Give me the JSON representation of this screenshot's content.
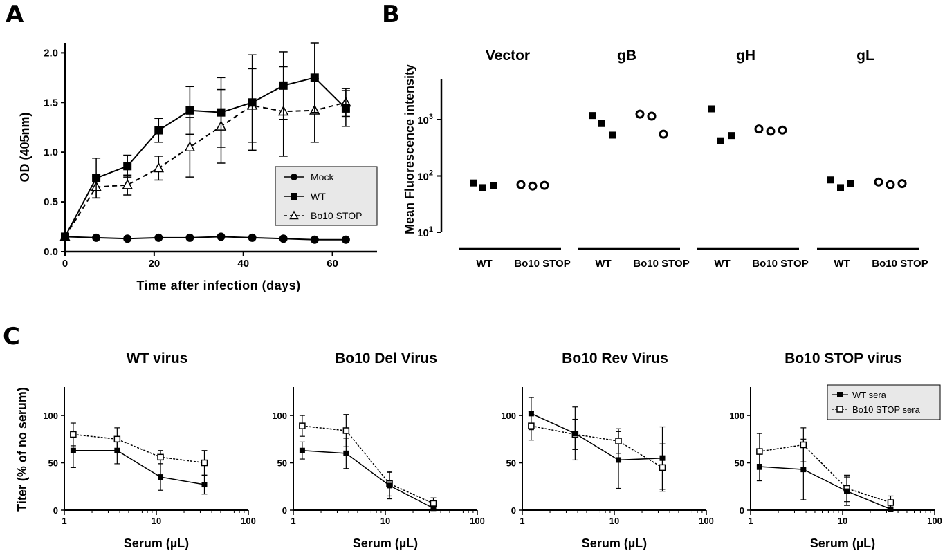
{
  "panels": {
    "A": "A",
    "B": "B",
    "C": "C"
  },
  "chart_data": [
    {
      "panel": "A",
      "type": "line",
      "xlabel": "Time after infection (days)",
      "ylabel": "OD (405nm)",
      "xlim": [
        0,
        70
      ],
      "ylim": [
        0,
        2.1
      ],
      "xticks": [
        0,
        20,
        40,
        60
      ],
      "yticks": [
        0.0,
        0.5,
        1.0,
        1.5,
        2.0
      ],
      "ytick_labels": [
        "0.0",
        "0.5",
        "1.0",
        "1.5",
        "2.0"
      ],
      "legend_position": "bottom-right",
      "series": [
        {
          "name": "Mock",
          "marker": "circle-filled",
          "dash": false,
          "x": [
            0,
            7,
            14,
            21,
            28,
            35,
            42,
            49,
            56,
            63
          ],
          "y": [
            0.15,
            0.14,
            0.13,
            0.14,
            0.14,
            0.15,
            0.14,
            0.13,
            0.12,
            0.12
          ],
          "err": [
            0,
            0,
            0,
            0,
            0,
            0,
            0,
            0,
            0,
            0
          ]
        },
        {
          "name": "WT",
          "marker": "square-filled",
          "dash": false,
          "x": [
            0,
            7,
            14,
            21,
            28,
            35,
            42,
            49,
            56,
            63
          ],
          "y": [
            0.15,
            0.74,
            0.86,
            1.22,
            1.42,
            1.4,
            1.5,
            1.67,
            1.75,
            1.44
          ],
          "err": [
            0,
            0.2,
            0.11,
            0.12,
            0.24,
            0.35,
            0.48,
            0.34,
            0.35,
            0.18
          ]
        },
        {
          "name": "Bo10 STOP",
          "marker": "triangle-open",
          "dash": true,
          "x": [
            0,
            7,
            14,
            21,
            28,
            35,
            42,
            49,
            56,
            63
          ],
          "y": [
            0.15,
            0.65,
            0.67,
            0.84,
            1.05,
            1.26,
            1.47,
            1.41,
            1.42,
            1.5
          ],
          "err": [
            0,
            0.11,
            0.1,
            0.12,
            0.3,
            0.37,
            0.37,
            0.45,
            0.32,
            0.14
          ]
        }
      ]
    },
    {
      "panel": "B",
      "type": "scatter",
      "ylabel": "Mean Fluorescence intensity",
      "yscale": "log",
      "ylim": [
        10,
        5000
      ],
      "yticks": [
        10,
        100,
        1000
      ],
      "ytick_base": "10",
      "ytick_exponents": [
        "1",
        "2",
        "3"
      ],
      "groups": [
        {
          "title": "Vector",
          "WT": [
            75,
            62,
            68
          ],
          "Bo10 STOP": [
            70,
            66,
            68
          ]
        },
        {
          "title": "gB",
          "WT": [
            1180,
            850,
            530
          ],
          "Bo10 STOP": [
            1250,
            1150,
            550
          ]
        },
        {
          "title": "gH",
          "WT": [
            1550,
            420,
            520
          ],
          "Bo10 STOP": [
            680,
            620,
            650
          ]
        },
        {
          "title": "gL",
          "WT": [
            85,
            62,
            73
          ],
          "Bo10 STOP": [
            78,
            70,
            73
          ]
        }
      ],
      "categories": [
        "WT",
        "Bo10 STOP"
      ],
      "markers": {
        "WT": "square-filled",
        "Bo10 STOP": "circle-open"
      }
    },
    {
      "panel": "C",
      "type": "line",
      "xlabel": "Serum (µL)",
      "ylabel": "Titer (% of no serum)",
      "xscale": "log",
      "xlim": [
        1,
        100
      ],
      "ylim": [
        0,
        130
      ],
      "xticks": [
        1,
        10,
        100
      ],
      "yticks": [
        0,
        50,
        100
      ],
      "legend_position": "top-right",
      "legend_series": [
        "WT sera",
        "Bo10 STOP sera"
      ],
      "subplots": [
        {
          "title": "WT virus",
          "series": [
            {
              "name": "WT sera",
              "marker": "square-filled",
              "x": [
                1.25,
                3.75,
                11.1,
                33.3
              ],
              "y": [
                63,
                63,
                35,
                27
              ],
              "err": [
                18,
                14,
                14,
                10
              ]
            },
            {
              "name": "Bo10 STOP sera",
              "marker": "square-open",
              "x": [
                1.25,
                3.75,
                11.1,
                33.3
              ],
              "y": [
                80,
                75,
                56,
                50
              ],
              "err": [
                12,
                12,
                7,
                13
              ]
            }
          ]
        },
        {
          "title": "Bo10 Del Virus",
          "series": [
            {
              "name": "WT sera",
              "marker": "square-filled",
              "x": [
                1.25,
                3.75,
                11.1,
                33.3
              ],
              "y": [
                63,
                60,
                26,
                2
              ],
              "err": [
                9,
                16,
                14,
                3
              ]
            },
            {
              "name": "Bo10 STOP sera",
              "marker": "square-open",
              "x": [
                1.25,
                3.75,
                11.1,
                33.3
              ],
              "y": [
                89,
                84,
                28,
                7
              ],
              "err": [
                11,
                17,
                13,
                6
              ]
            }
          ]
        },
        {
          "title": "Bo10 Rev Virus",
          "series": [
            {
              "name": "WT sera",
              "marker": "square-filled",
              "x": [
                1.25,
                3.75,
                11.1,
                33.3
              ],
              "y": [
                102,
                81,
                53,
                55
              ],
              "err": [
                17,
                28,
                30,
                33
              ]
            },
            {
              "name": "Bo10 STOP sera",
              "marker": "square-open",
              "x": [
                1.25,
                3.75,
                11.1,
                33.3
              ],
              "y": [
                89,
                80,
                73,
                45
              ],
              "err": [
                15,
                16,
                13,
                25
              ]
            }
          ]
        },
        {
          "title": "Bo10 STOP virus",
          "series": [
            {
              "name": "WT sera",
              "marker": "square-filled",
              "x": [
                1.25,
                3.75,
                11.1,
                33.3
              ],
              "y": [
                46,
                43,
                20,
                1
              ],
              "err": [
                15,
                32,
                15,
                2
              ]
            },
            {
              "name": "Bo10 STOP sera",
              "marker": "square-open",
              "x": [
                1.25,
                3.75,
                11.1,
                33.3
              ],
              "y": [
                62,
                69,
                23,
                8
              ],
              "err": [
                19,
                18,
                14,
                7
              ]
            }
          ]
        }
      ]
    }
  ]
}
